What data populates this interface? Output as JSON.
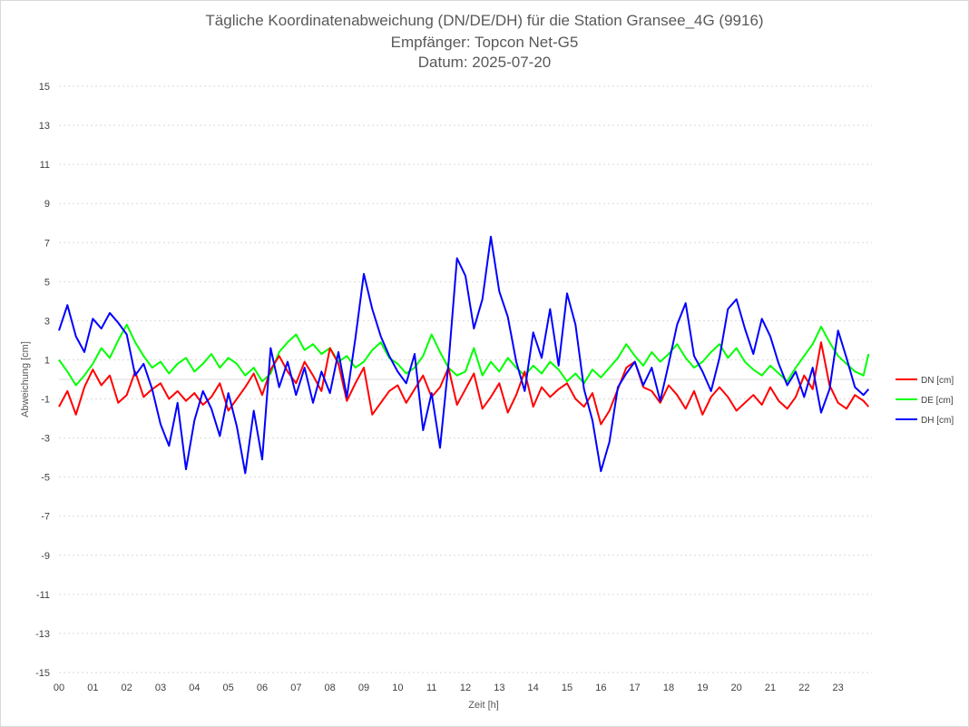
{
  "chart_data": {
    "type": "line",
    "title": [
      "Tägliche Koordinatenabweichung (DN/DE/DH) für die Station Gransee_4G (9916)",
      "Empfänger: Topcon Net-G5",
      "Datum: 2025-07-20"
    ],
    "xlabel": "Zeit [h]",
    "ylabel": "Abweichung [cm]",
    "xlim": [
      0,
      24
    ],
    "ylim": [
      -15,
      15
    ],
    "x_tick_labels": [
      "00",
      "01",
      "02",
      "03",
      "04",
      "05",
      "06",
      "07",
      "08",
      "09",
      "10",
      "11",
      "12",
      "13",
      "14",
      "15",
      "16",
      "17",
      "18",
      "19",
      "20",
      "21",
      "22",
      "23"
    ],
    "y_tick_labels": [
      "15",
      "13",
      "11",
      "9",
      "7",
      "5",
      "3",
      "1",
      "-1",
      "-3",
      "-5",
      "-7",
      "-9",
      "-11",
      "-13",
      "-15"
    ],
    "grid": true,
    "legend_position": "right",
    "series": [
      {
        "name": "DN [cm]",
        "color": "#ff0000",
        "x": [
          0,
          0.25,
          0.5,
          0.75,
          1,
          1.25,
          1.5,
          1.75,
          2,
          2.25,
          2.5,
          2.75,
          3,
          3.25,
          3.5,
          3.75,
          4,
          4.25,
          4.5,
          4.75,
          5,
          5.25,
          5.5,
          5.75,
          6,
          6.25,
          6.5,
          6.75,
          7,
          7.25,
          7.5,
          7.75,
          8,
          8.25,
          8.5,
          8.75,
          9,
          9.25,
          9.5,
          9.75,
          10,
          10.25,
          10.5,
          10.75,
          11,
          11.25,
          11.5,
          11.75,
          12,
          12.25,
          12.5,
          12.75,
          13,
          13.25,
          13.5,
          13.75,
          14,
          14.25,
          14.5,
          14.75,
          15,
          15.25,
          15.5,
          15.75,
          16,
          16.25,
          16.5,
          16.75,
          17,
          17.25,
          17.5,
          17.75,
          18,
          18.25,
          18.5,
          18.75,
          19,
          19.25,
          19.5,
          19.75,
          20,
          20.25,
          20.5,
          20.75,
          21,
          21.25,
          21.5,
          21.75,
          22,
          22.25,
          22.5,
          22.75,
          23,
          23.25,
          23.5,
          23.75,
          23.9
        ],
        "y": [
          -1.4,
          -0.6,
          -1.8,
          -0.4,
          0.5,
          -0.3,
          0.2,
          -1.2,
          -0.8,
          0.4,
          -0.9,
          -0.5,
          -0.2,
          -1,
          -0.6,
          -1.1,
          -0.7,
          -1.3,
          -0.9,
          -0.2,
          -1.6,
          -1,
          -0.4,
          0.3,
          -0.8,
          0.5,
          1.2,
          0.4,
          -0.2,
          0.9,
          0.2,
          -0.6,
          1.6,
          0.8,
          -1.1,
          -0.2,
          0.6,
          -1.8,
          -1.2,
          -0.6,
          -0.3,
          -1.2,
          -0.5,
          0.2,
          -0.9,
          -0.4,
          0.6,
          -1.3,
          -0.5,
          0.3,
          -1.5,
          -0.9,
          -0.2,
          -1.7,
          -0.8,
          0.4,
          -1.4,
          -0.4,
          -0.9,
          -0.5,
          -0.2,
          -1,
          -1.4,
          -0.7,
          -2.3,
          -1.6,
          -0.5,
          0.6,
          0.9,
          -0.4,
          -0.6,
          -1.2,
          -0.3,
          -0.8,
          -1.5,
          -0.6,
          -1.8,
          -0.9,
          -0.4,
          -0.9,
          -1.6,
          -1.2,
          -0.8,
          -1.3,
          -0.4,
          -1.1,
          -1.5,
          -0.9,
          0.2,
          -0.5,
          1.9,
          -0.3,
          -1.2,
          -1.5,
          -0.8,
          -1.1,
          -1.4
        ]
      },
      {
        "name": "DE [cm]",
        "color": "#00ff00",
        "x": [
          0,
          0.25,
          0.5,
          0.75,
          1,
          1.25,
          1.5,
          1.75,
          2,
          2.25,
          2.5,
          2.75,
          3,
          3.25,
          3.5,
          3.75,
          4,
          4.25,
          4.5,
          4.75,
          5,
          5.25,
          5.5,
          5.75,
          6,
          6.25,
          6.5,
          6.75,
          7,
          7.25,
          7.5,
          7.75,
          8,
          8.25,
          8.5,
          8.75,
          9,
          9.25,
          9.5,
          9.75,
          10,
          10.25,
          10.5,
          10.75,
          11,
          11.25,
          11.5,
          11.75,
          12,
          12.25,
          12.5,
          12.75,
          13,
          13.25,
          13.5,
          13.75,
          14,
          14.25,
          14.5,
          14.75,
          15,
          15.25,
          15.5,
          15.75,
          16,
          16.25,
          16.5,
          16.75,
          17,
          17.25,
          17.5,
          17.75,
          18,
          18.25,
          18.5,
          18.75,
          19,
          19.25,
          19.5,
          19.75,
          20,
          20.25,
          20.5,
          20.75,
          21,
          21.25,
          21.5,
          21.75,
          22,
          22.25,
          22.5,
          22.75,
          23,
          23.25,
          23.5,
          23.75,
          23.9
        ],
        "y": [
          1,
          0.4,
          -0.3,
          0.2,
          0.8,
          1.6,
          1.1,
          2,
          2.8,
          1.9,
          1.2,
          0.6,
          0.9,
          0.3,
          0.8,
          1.1,
          0.4,
          0.8,
          1.3,
          0.6,
          1.1,
          0.8,
          0.2,
          0.6,
          -0.1,
          0.3,
          1.4,
          1.9,
          2.3,
          1.5,
          1.8,
          1.3,
          1.6,
          0.9,
          1.2,
          0.6,
          0.9,
          1.5,
          1.9,
          1.1,
          0.8,
          0.3,
          0.6,
          1.2,
          2.3,
          1.4,
          0.6,
          0.2,
          0.4,
          1.6,
          0.2,
          0.9,
          0.4,
          1.1,
          0.6,
          0.2,
          0.7,
          0.3,
          0.9,
          0.5,
          -0.1,
          0.3,
          -0.2,
          0.5,
          0.1,
          0.6,
          1.1,
          1.8,
          1.2,
          0.7,
          1.4,
          0.9,
          1.3,
          1.8,
          1.1,
          0.6,
          0.9,
          1.4,
          1.8,
          1.1,
          1.6,
          0.9,
          0.5,
          0.2,
          0.7,
          0.3,
          -0.1,
          0.6,
          1.2,
          1.8,
          2.7,
          1.9,
          1.2,
          0.8,
          0.4,
          0.2,
          1.3
        ]
      },
      {
        "name": "DH [cm]",
        "color": "#0000ff",
        "x": [
          0,
          0.25,
          0.5,
          0.75,
          1,
          1.25,
          1.5,
          1.75,
          2,
          2.25,
          2.5,
          2.75,
          3,
          3.25,
          3.5,
          3.75,
          4,
          4.25,
          4.5,
          4.75,
          5,
          5.25,
          5.5,
          5.75,
          6,
          6.25,
          6.5,
          6.75,
          7,
          7.25,
          7.5,
          7.75,
          8,
          8.25,
          8.5,
          8.75,
          9,
          9.25,
          9.5,
          9.75,
          10,
          10.25,
          10.5,
          10.75,
          11,
          11.25,
          11.5,
          11.75,
          12,
          12.25,
          12.5,
          12.75,
          13,
          13.25,
          13.5,
          13.75,
          14,
          14.25,
          14.5,
          14.75,
          15,
          15.25,
          15.5,
          15.75,
          16,
          16.25,
          16.5,
          16.75,
          17,
          17.25,
          17.5,
          17.75,
          18,
          18.25,
          18.5,
          18.75,
          19,
          19.25,
          19.5,
          19.75,
          20,
          20.25,
          20.5,
          20.75,
          21,
          21.25,
          21.5,
          21.75,
          22,
          22.25,
          22.5,
          22.75,
          23,
          23.25,
          23.5,
          23.75,
          23.9
        ],
        "y": [
          2.5,
          3.8,
          2.2,
          1.4,
          3.1,
          2.6,
          3.4,
          2.9,
          2.3,
          0.2,
          0.8,
          -0.5,
          -2.3,
          -3.4,
          -1.2,
          -4.6,
          -2.1,
          -0.6,
          -1.5,
          -2.9,
          -0.7,
          -2.4,
          -4.8,
          -1.6,
          -4.1,
          1.6,
          -0.4,
          0.9,
          -0.8,
          0.6,
          -1.2,
          0.4,
          -0.7,
          1.4,
          -0.9,
          2.1,
          5.4,
          3.6,
          2.2,
          1.2,
          0.4,
          -0.2,
          1.3,
          -2.6,
          -0.7,
          -3.5,
          0.8,
          6.2,
          5.3,
          2.6,
          4.1,
          7.3,
          4.5,
          3.2,
          0.9,
          -0.6,
          2.4,
          1.1,
          3.6,
          0.7,
          4.4,
          2.8,
          -0.5,
          -2.1,
          -4.7,
          -3.2,
          -0.4,
          0.3,
          0.9,
          -0.3,
          0.6,
          -1.1,
          0.8,
          2.8,
          3.9,
          1.2,
          0.4,
          -0.6,
          1.1,
          3.6,
          4.1,
          2.6,
          1.3,
          3.1,
          2.2,
          0.8,
          -0.3,
          0.4,
          -0.9,
          0.6,
          -1.7,
          -0.5,
          2.5,
          1.1,
          -0.4,
          -0.8,
          -0.5
        ]
      }
    ]
  }
}
